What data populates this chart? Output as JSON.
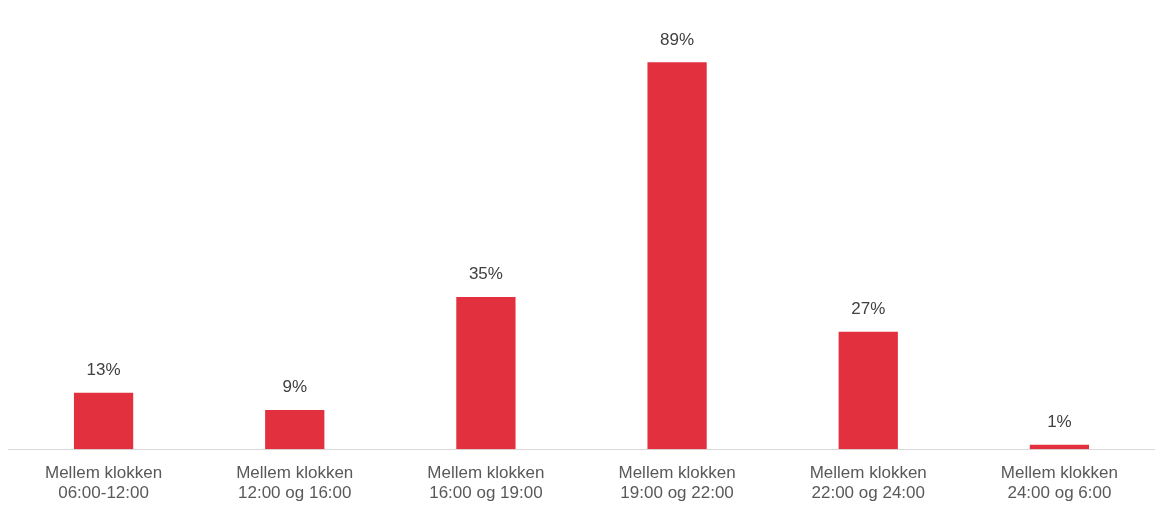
{
  "chart_data": {
    "type": "bar",
    "categories": [
      "Mellem klokken\n06:00-12:00",
      "Mellem klokken\n12:00 og 16:00",
      "Mellem klokken\n16:00 og 19:00",
      "Mellem klokken\n19:00 og 22:00",
      "Mellem klokken\n22:00 og 24:00",
      "Mellem klokken\n24:00 og 6:00"
    ],
    "values": [
      13,
      9,
      35,
      89,
      27,
      1
    ],
    "value_labels": [
      "13%",
      "9%",
      "35%",
      "89%",
      "27%",
      "1%"
    ],
    "color": "#e3303f",
    "grid": false,
    "legend": false
  }
}
